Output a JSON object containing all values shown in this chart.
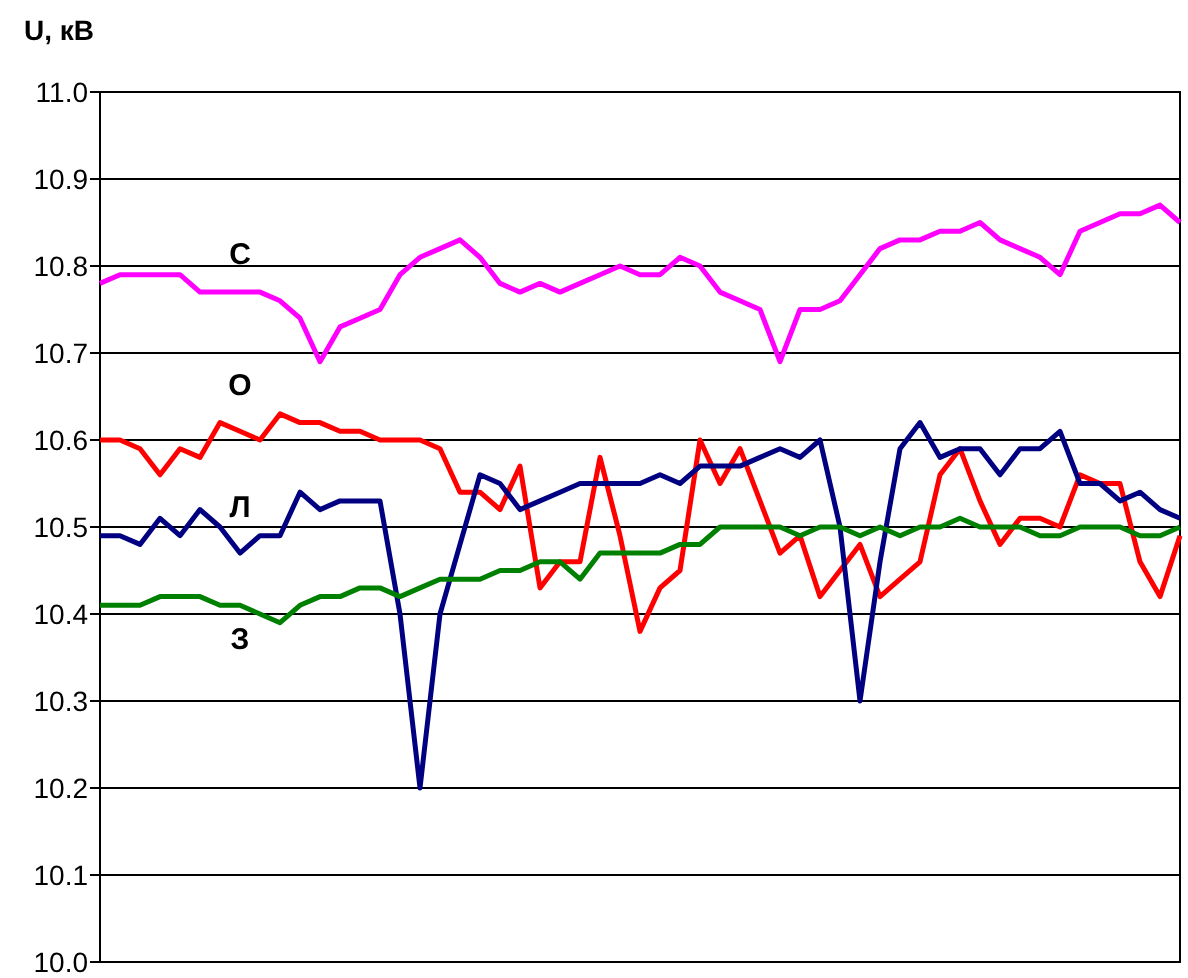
{
  "chart_data": {
    "type": "line",
    "ylabel": "U, кВ",
    "ylim": [
      10.0,
      11.0
    ],
    "yticks": [
      {
        "value": 10.0,
        "label": "10.0"
      },
      {
        "value": 10.1,
        "label": "10.1"
      },
      {
        "value": 10.2,
        "label": "10.2"
      },
      {
        "value": 10.3,
        "label": "10.3"
      },
      {
        "value": 10.4,
        "label": "10.4"
      },
      {
        "value": 10.5,
        "label": "10.5"
      },
      {
        "value": 10.6,
        "label": "10.6"
      },
      {
        "value": 10.7,
        "label": "10.7"
      },
      {
        "value": 10.8,
        "label": "10.8"
      },
      {
        "value": 10.9,
        "label": "10.9"
      },
      {
        "value": 11.0,
        "label": "11.0"
      }
    ],
    "grid": "y",
    "tick_labels": "y",
    "marker": "none",
    "line_style": "solid",
    "categories": [
      null,
      null,
      null,
      null,
      null,
      null,
      null,
      null,
      null,
      null,
      null,
      null,
      null,
      null,
      null,
      null,
      null,
      null,
      null,
      null,
      null,
      null,
      null,
      null,
      null,
      null,
      null,
      null,
      null,
      null,
      null,
      null,
      null,
      null,
      null,
      null,
      null,
      null,
      null,
      null,
      null,
      null,
      null,
      null,
      null,
      null,
      null,
      null,
      null,
      null,
      null,
      null,
      null,
      null,
      null
    ],
    "series": [
      {
        "name": "С",
        "color": "#ff00ff",
        "values": [
          10.78,
          10.79,
          10.79,
          10.79,
          10.79,
          10.77,
          10.77,
          10.77,
          10.77,
          10.76,
          10.74,
          10.69,
          10.73,
          10.74,
          10.75,
          10.79,
          10.81,
          10.82,
          10.83,
          10.81,
          10.78,
          10.77,
          10.78,
          10.77,
          10.78,
          10.79,
          10.8,
          10.79,
          10.79,
          10.81,
          10.8,
          10.77,
          10.76,
          10.75,
          10.69,
          10.75,
          10.75,
          10.76,
          10.79,
          10.82,
          10.83,
          10.83,
          10.84,
          10.84,
          10.85,
          10.83,
          10.82,
          10.81,
          10.79,
          10.84,
          10.85,
          10.86,
          10.86,
          10.87,
          10.85
        ]
      },
      {
        "name": "О",
        "color": "#ff0000",
        "values": [
          10.6,
          10.6,
          10.59,
          10.56,
          10.59,
          10.58,
          10.62,
          10.61,
          10.6,
          10.63,
          10.62,
          10.62,
          10.61,
          10.61,
          10.6,
          10.6,
          10.6,
          10.59,
          10.54,
          10.54,
          10.52,
          10.57,
          10.43,
          10.46,
          10.46,
          10.58,
          10.49,
          10.38,
          10.43,
          10.45,
          10.6,
          10.55,
          10.59,
          10.53,
          10.47,
          10.49,
          10.42,
          10.45,
          10.48,
          10.42,
          10.44,
          10.46,
          10.56,
          10.59,
          10.53,
          10.48,
          10.51,
          10.51,
          10.5,
          10.56,
          10.55,
          10.55,
          10.46,
          10.42,
          10.49
        ]
      },
      {
        "name": "Л",
        "color": "#000080",
        "values": [
          10.49,
          10.49,
          10.48,
          10.51,
          10.49,
          10.52,
          10.5,
          10.47,
          10.49,
          10.49,
          10.54,
          10.52,
          10.53,
          10.53,
          10.53,
          10.4,
          10.2,
          10.4,
          10.48,
          10.56,
          10.55,
          10.52,
          10.53,
          10.54,
          10.55,
          10.55,
          10.55,
          10.55,
          10.56,
          10.55,
          10.57,
          10.57,
          10.57,
          10.58,
          10.59,
          10.58,
          10.6,
          10.5,
          10.3,
          10.46,
          10.59,
          10.62,
          10.58,
          10.59,
          10.59,
          10.56,
          10.59,
          10.59,
          10.61,
          10.55,
          10.55,
          10.53,
          10.54,
          10.52,
          10.51
        ]
      },
      {
        "name": "З",
        "color": "#008000",
        "values": [
          10.41,
          10.41,
          10.41,
          10.42,
          10.42,
          10.42,
          10.41,
          10.41,
          10.4,
          10.39,
          10.41,
          10.42,
          10.42,
          10.43,
          10.43,
          10.42,
          10.43,
          10.44,
          10.44,
          10.44,
          10.45,
          10.45,
          10.46,
          10.46,
          10.44,
          10.47,
          10.47,
          10.47,
          10.47,
          10.48,
          10.48,
          10.5,
          10.5,
          10.5,
          10.5,
          10.49,
          10.5,
          10.5,
          10.49,
          10.5,
          10.49,
          10.5,
          10.5,
          10.51,
          10.5,
          10.5,
          10.5,
          10.49,
          10.49,
          10.5,
          10.5,
          10.5,
          10.49,
          10.49,
          10.5
        ]
      }
    ]
  }
}
